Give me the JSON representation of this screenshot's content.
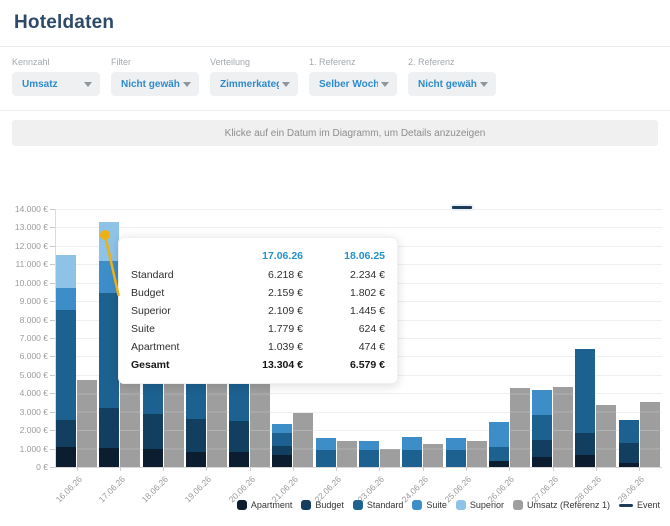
{
  "header": {
    "title": "Hoteldaten"
  },
  "filters": [
    {
      "label": "Kennzahl",
      "value": "Umsatz"
    },
    {
      "label": "Filter",
      "value": "Nicht gewählt"
    },
    {
      "label": "Verteilung",
      "value": "Zimmerkategorien"
    },
    {
      "label": "1. Referenz",
      "value": "Selber Wochentag"
    },
    {
      "label": "2. Referenz",
      "value": "Nicht gewählt"
    }
  ],
  "info": {
    "hint": "Klicke auf ein Datum im Diagramm, um Details anzuzeigen"
  },
  "tooltip": {
    "col1": "17.06.26",
    "col2": "18.06.25",
    "rows": [
      {
        "label": "Standard",
        "v1": "6.218 €",
        "v2": "2.234 €",
        "bold": false
      },
      {
        "label": "Budget",
        "v1": "2.159 €",
        "v2": "1.802 €",
        "bold": false
      },
      {
        "label": "Superior",
        "v1": "2.109 €",
        "v2": "1.445 €",
        "bold": false
      },
      {
        "label": "Suite",
        "v1": "1.779 €",
        "v2": "624 €",
        "bold": false
      },
      {
        "label": "Apartment",
        "v1": "1.039 €",
        "v2": "474 €",
        "bold": false
      },
      {
        "label": "Gesamt",
        "v1": "13.304 €",
        "v2": "6.579 €",
        "bold": true
      }
    ]
  },
  "chart_data": {
    "type": "bar",
    "title": "",
    "xlabel": "",
    "ylabel": "Umsatz",
    "ylim": [
      0,
      14000
    ],
    "y_step": 1000,
    "y_unit": "€",
    "grid": true,
    "legend_position": "bottom-right",
    "categories": [
      "16.06.26",
      "17.06.26",
      "18.06.26",
      "19.06.26",
      "20.06.26",
      "21.06.26",
      "22.06.26",
      "23.06.26",
      "24.06.26",
      "25.06.26",
      "26.06.26",
      "27.06.26",
      "28.06.26",
      "29.06.26"
    ],
    "series": [
      {
        "name": "Apartment",
        "color": "#0c1d30",
        "values": [
          1100,
          1039,
          1000,
          830,
          830,
          650,
          0,
          0,
          0,
          0,
          340,
          560,
          650,
          200
        ]
      },
      {
        "name": "Budget",
        "color": "#123f5f",
        "values": [
          1450,
          2159,
          1900,
          1750,
          1650,
          500,
          0,
          0,
          0,
          0,
          0,
          905,
          1180,
          1085
        ]
      },
      {
        "name": "Standard",
        "color": "#1d6190",
        "values": [
          5950,
          6218,
          2750,
          3170,
          3270,
          700,
          920,
          920,
          920,
          920,
          730,
          1355,
          4550,
          1265
        ]
      },
      {
        "name": "Suite",
        "color": "#3d8ec8",
        "values": [
          1200,
          1779,
          150,
          0,
          0,
          500,
          670,
          480,
          690,
          680,
          1390,
          1360,
          0,
          0
        ]
      },
      {
        "name": "Superior",
        "color": "#8ec3e7",
        "values": [
          1800,
          2109,
          100,
          0,
          0,
          0,
          0,
          0,
          0,
          0,
          0,
          0,
          0,
          0
        ]
      }
    ],
    "reference": {
      "name": "Umsatz (Referenz 1)",
      "color": "#9e9e9e",
      "values": [
        4700,
        6579,
        5900,
        5800,
        5750,
        2950,
        1410,
        1000,
        1250,
        1410,
        4300,
        4320,
        3365,
        3545
      ]
    },
    "event": {
      "label": "Event",
      "category": "25.06.26",
      "category_index": 9,
      "color": "#1d3c5a"
    },
    "legend": [
      {
        "label": "Apartment",
        "color": "#0c1d30",
        "type": "square"
      },
      {
        "label": "Budget",
        "color": "#123f5f",
        "type": "square"
      },
      {
        "label": "Standard",
        "color": "#1d6190",
        "type": "square"
      },
      {
        "label": "Suite",
        "color": "#3d8ec8",
        "type": "square"
      },
      {
        "label": "Superior",
        "color": "#8ec3e7",
        "type": "square"
      },
      {
        "label": "Umsatz (Referenz 1)",
        "color": "#9e9e9e",
        "type": "square"
      },
      {
        "label": "Event",
        "color": "#1d3c5a",
        "type": "line"
      }
    ],
    "pointer_color": "#eeb111"
  }
}
